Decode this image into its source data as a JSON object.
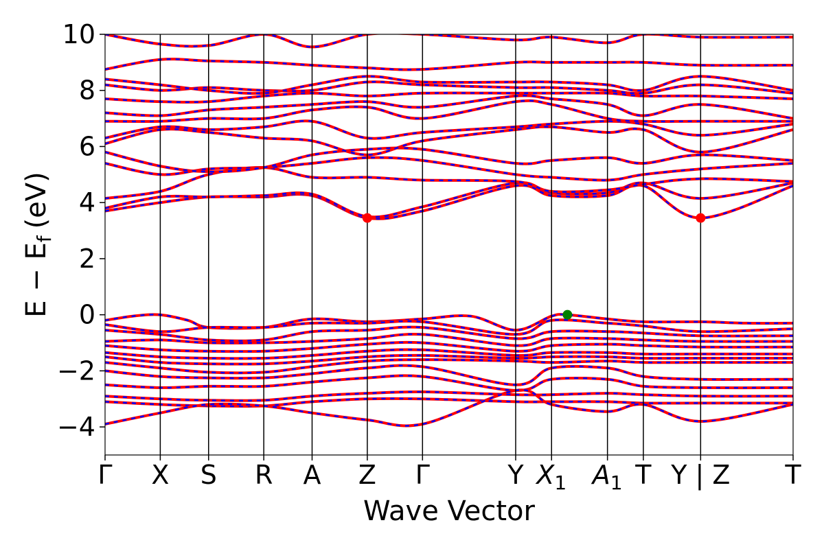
{
  "chart_data": {
    "type": "line",
    "title": "",
    "xlabel": "Wave Vector",
    "ylabel": "E − E",
    "ylabel_subscript": "f",
    "ylabel_unit": "(eV)",
    "ylim": [
      -5,
      10
    ],
    "yticks": [
      -4,
      -2,
      0,
      2,
      4,
      6,
      8,
      10
    ],
    "ytick_labels": [
      "−4",
      "−2",
      "0",
      "2",
      "4",
      "6",
      "8",
      "10"
    ],
    "kpath_positions": [
      0.0,
      0.8,
      1.5,
      2.3,
      3.0,
      3.8,
      4.6,
      5.95,
      6.47,
      7.28,
      7.8,
      8.63,
      9.97
    ],
    "kpath_labels": [
      {
        "main": "Γ",
        "sub": ""
      },
      {
        "main": "X",
        "sub": ""
      },
      {
        "main": "S",
        "sub": ""
      },
      {
        "main": "R",
        "sub": ""
      },
      {
        "main": "A",
        "sub": ""
      },
      {
        "main": "Z",
        "sub": ""
      },
      {
        "main": "Γ",
        "sub": ""
      },
      {
        "main": "Y",
        "sub": ""
      },
      {
        "main": "X",
        "sub": "1"
      },
      {
        "main": "A",
        "sub": "1"
      },
      {
        "main": "T",
        "sub": ""
      },
      {
        "main": "Y | Z",
        "sub": ""
      },
      {
        "main": "T",
        "sub": ""
      }
    ],
    "series": [
      {
        "color": "#ff0000",
        "style": "solid"
      },
      {
        "color": "#0000ff",
        "style": "dashed"
      }
    ],
    "valence_bands": [
      {
        "x": [
          0.0,
          0.4,
          0.8,
          1.2,
          1.5,
          2.3,
          3.0,
          3.8,
          4.6,
          5.3,
          5.95,
          6.47,
          6.7,
          7.28,
          7.8,
          8.63,
          9.3,
          9.97
        ],
        "y": [
          -0.2,
          -0.05,
          0.0,
          -0.2,
          -0.45,
          -0.45,
          -0.15,
          -0.25,
          -0.15,
          -0.05,
          -0.55,
          -0.05,
          0.0,
          -0.15,
          -0.25,
          -0.25,
          -0.3,
          -0.3
        ]
      },
      {
        "x": [
          0.0,
          0.8,
          1.5,
          2.3,
          3.0,
          3.8,
          4.6,
          5.95,
          6.47,
          7.28,
          7.8,
          8.63,
          9.97
        ],
        "y": [
          -0.35,
          -0.6,
          -0.45,
          -0.45,
          -0.3,
          -0.3,
          -0.25,
          -0.7,
          -0.2,
          -0.3,
          -0.4,
          -0.6,
          -0.5
        ]
      },
      {
        "x": [
          0.0,
          0.8,
          1.5,
          2.3,
          3.0,
          3.8,
          4.6,
          5.95,
          6.47,
          7.28,
          7.8,
          8.63,
          9.97
        ],
        "y": [
          -0.55,
          -0.7,
          -0.9,
          -0.9,
          -0.6,
          -0.55,
          -0.45,
          -0.85,
          -0.6,
          -0.6,
          -0.65,
          -0.75,
          -0.75
        ]
      },
      {
        "x": [
          0.0,
          0.8,
          1.5,
          2.3,
          3.0,
          3.8,
          4.6,
          5.95,
          6.47,
          7.28,
          7.8,
          8.63,
          9.97
        ],
        "y": [
          -0.95,
          -0.9,
          -1.0,
          -1.0,
          -0.95,
          -0.85,
          -0.7,
          -1.1,
          -0.85,
          -0.85,
          -0.9,
          -0.95,
          -0.95
        ]
      },
      {
        "x": [
          0.0,
          0.8,
          1.5,
          2.3,
          3.0,
          3.8,
          4.6,
          5.95,
          6.47,
          7.28,
          7.8,
          8.63,
          9.97
        ],
        "y": [
          -1.1,
          -1.25,
          -1.3,
          -1.3,
          -1.2,
          -1.05,
          -1.0,
          -1.3,
          -1.1,
          -1.05,
          -1.1,
          -1.15,
          -1.15
        ]
      },
      {
        "x": [
          0.0,
          0.8,
          1.5,
          2.3,
          3.0,
          3.8,
          4.6,
          5.95,
          6.47,
          7.28,
          7.8,
          8.63,
          9.97
        ],
        "y": [
          -1.35,
          -1.5,
          -1.55,
          -1.55,
          -1.45,
          -1.3,
          -1.25,
          -1.45,
          -1.35,
          -1.35,
          -1.4,
          -1.4,
          -1.4
        ]
      },
      {
        "x": [
          0.0,
          0.8,
          1.5,
          2.3,
          3.0,
          3.8,
          4.6,
          5.95,
          6.47,
          7.28,
          7.8,
          8.63,
          9.97
        ],
        "y": [
          -1.5,
          -1.7,
          -1.75,
          -1.75,
          -1.65,
          -1.5,
          -1.45,
          -1.55,
          -1.5,
          -1.5,
          -1.55,
          -1.55,
          -1.55
        ]
      },
      {
        "x": [
          0.0,
          0.8,
          1.5,
          2.3,
          3.0,
          3.8,
          4.6,
          5.95,
          6.47,
          7.28,
          7.8,
          8.63,
          9.97
        ],
        "y": [
          -1.7,
          -1.9,
          -2.05,
          -2.05,
          -1.85,
          -1.65,
          -1.6,
          -1.65,
          -1.7,
          -1.65,
          -1.7,
          -1.7,
          -1.7
        ]
      },
      {
        "x": [
          0.0,
          0.8,
          1.5,
          2.3,
          3.0,
          3.8,
          4.6,
          5.95,
          6.47,
          7.28,
          7.8,
          8.63,
          9.97
        ],
        "y": [
          -2.0,
          -2.2,
          -2.25,
          -2.25,
          -2.1,
          -1.9,
          -1.85,
          -2.5,
          -1.9,
          -1.9,
          -2.2,
          -2.3,
          -2.3
        ]
      },
      {
        "x": [
          0.0,
          0.8,
          1.5,
          2.3,
          3.0,
          3.8,
          4.6,
          5.95,
          6.47,
          7.28,
          7.8,
          8.63,
          9.97
        ],
        "y": [
          -2.5,
          -2.6,
          -2.55,
          -2.55,
          -2.4,
          -2.25,
          -2.2,
          -2.7,
          -2.3,
          -2.3,
          -2.55,
          -2.6,
          -2.6
        ]
      },
      {
        "x": [
          0.0,
          0.8,
          1.5,
          2.3,
          3.0,
          3.8,
          4.6,
          5.95,
          6.47,
          7.28,
          7.8,
          8.63,
          9.97
        ],
        "y": [
          -2.9,
          -3.0,
          -3.05,
          -3.05,
          -2.9,
          -2.8,
          -2.75,
          -2.85,
          -2.85,
          -2.8,
          -2.85,
          -2.9,
          -2.9
        ]
      },
      {
        "x": [
          0.0,
          0.8,
          1.5,
          2.3,
          3.0,
          3.8,
          4.6,
          5.95,
          6.47,
          7.28,
          7.8,
          8.63,
          9.97
        ],
        "y": [
          -3.1,
          -3.2,
          -3.25,
          -3.25,
          -3.1,
          -3.0,
          -3.0,
          -3.1,
          -3.1,
          -3.1,
          -3.15,
          -3.15,
          -3.15
        ]
      },
      {
        "x": [
          0.0,
          0.8,
          1.5,
          2.3,
          3.0,
          3.8,
          4.6,
          5.95,
          6.47,
          7.28,
          7.8,
          8.63,
          9.97
        ],
        "y": [
          -3.9,
          -3.5,
          -3.2,
          -3.25,
          -3.5,
          -3.75,
          -3.9,
          -2.7,
          -3.2,
          -3.45,
          -3.2,
          -3.8,
          -3.2
        ]
      }
    ],
    "conduction_bands": [
      {
        "x": [
          0.0,
          0.8,
          1.5,
          2.3,
          3.0,
          3.8,
          4.6,
          5.95,
          6.47,
          7.28,
          7.8,
          8.63,
          9.97
        ],
        "y": [
          3.7,
          4.0,
          4.2,
          4.2,
          4.25,
          3.45,
          3.7,
          4.6,
          4.25,
          4.25,
          4.6,
          3.45,
          4.6
        ]
      },
      {
        "x": [
          0.0,
          0.8,
          1.5,
          2.3,
          3.0,
          3.8,
          4.6,
          5.95,
          6.47,
          7.28,
          7.8,
          8.63,
          9.97
        ],
        "y": [
          3.8,
          4.2,
          4.2,
          4.25,
          4.3,
          3.5,
          3.85,
          4.7,
          4.35,
          4.35,
          4.7,
          4.15,
          4.7
        ]
      },
      {
        "x": [
          0.0,
          0.8,
          1.5,
          2.3,
          3.0,
          3.8,
          4.6,
          5.95,
          6.47,
          7.28,
          7.8,
          8.63,
          9.97
        ],
        "y": [
          4.15,
          4.4,
          5.0,
          5.25,
          4.9,
          4.9,
          4.8,
          4.75,
          4.4,
          4.45,
          4.65,
          4.85,
          4.75
        ]
      },
      {
        "x": [
          0.0,
          0.8,
          1.5,
          2.3,
          3.0,
          3.8,
          4.6,
          5.95,
          6.47,
          7.28,
          7.8,
          8.63,
          9.97
        ],
        "y": [
          5.4,
          5.0,
          5.2,
          5.25,
          5.4,
          5.6,
          5.5,
          5.0,
          4.9,
          4.8,
          5.0,
          5.2,
          5.4
        ]
      },
      {
        "x": [
          0.0,
          0.8,
          1.5,
          2.3,
          3.0,
          3.8,
          4.6,
          5.95,
          6.47,
          7.28,
          7.8,
          8.63,
          9.97
        ],
        "y": [
          5.8,
          5.3,
          5.1,
          5.25,
          5.7,
          5.9,
          5.9,
          5.4,
          5.5,
          5.6,
          5.4,
          5.7,
          5.5
        ]
      },
      {
        "x": [
          0.0,
          0.8,
          1.5,
          2.3,
          3.0,
          3.8,
          4.6,
          5.95,
          6.47,
          7.28,
          7.8,
          8.63,
          9.97
        ],
        "y": [
          6.1,
          6.6,
          6.5,
          6.3,
          6.2,
          5.7,
          6.2,
          6.6,
          6.7,
          6.5,
          6.6,
          5.8,
          6.6
        ]
      },
      {
        "x": [
          0.0,
          0.8,
          1.5,
          2.3,
          3.0,
          3.8,
          4.6,
          5.95,
          6.47,
          7.28,
          7.8,
          8.63,
          9.97
        ],
        "y": [
          6.3,
          6.7,
          6.6,
          6.7,
          6.9,
          6.3,
          6.5,
          6.7,
          6.8,
          6.9,
          6.8,
          6.4,
          6.8
        ]
      },
      {
        "x": [
          0.0,
          0.8,
          1.5,
          2.3,
          3.0,
          3.8,
          4.6,
          5.95,
          6.47,
          7.28,
          7.8,
          8.63,
          9.97
        ],
        "y": [
          6.9,
          6.9,
          7.0,
          7.0,
          7.3,
          7.4,
          7.0,
          7.6,
          7.5,
          7.0,
          6.9,
          6.9,
          6.9
        ]
      },
      {
        "x": [
          0.0,
          0.8,
          1.5,
          2.3,
          3.0,
          3.8,
          4.6,
          5.95,
          6.47,
          7.28,
          7.8,
          8.63,
          9.97
        ],
        "y": [
          7.2,
          7.1,
          7.3,
          7.4,
          7.5,
          7.6,
          7.4,
          7.8,
          7.7,
          7.5,
          7.1,
          7.5,
          7.0
        ]
      },
      {
        "x": [
          0.0,
          0.8,
          1.5,
          2.3,
          3.0,
          3.8,
          4.6,
          5.95,
          6.47,
          7.28,
          7.8,
          8.63,
          9.97
        ],
        "y": [
          7.7,
          7.6,
          7.6,
          7.8,
          7.9,
          7.8,
          7.9,
          7.9,
          7.9,
          7.9,
          7.8,
          7.8,
          7.7
        ]
      },
      {
        "x": [
          0.0,
          0.8,
          1.5,
          2.3,
          3.0,
          3.8,
          4.6,
          5.95,
          6.47,
          7.28,
          7.8,
          8.63,
          9.97
        ],
        "y": [
          8.2,
          8.0,
          8.1,
          8.0,
          8.0,
          8.3,
          8.2,
          8.1,
          8.1,
          8.0,
          7.9,
          8.2,
          7.9
        ]
      },
      {
        "x": [
          0.0,
          0.8,
          1.5,
          2.3,
          3.0,
          3.8,
          4.6,
          5.95,
          6.47,
          7.28,
          7.8,
          8.63,
          9.97
        ],
        "y": [
          8.4,
          8.2,
          8.0,
          7.9,
          8.2,
          8.5,
          8.3,
          8.3,
          8.3,
          8.2,
          8.0,
          8.5,
          8.0
        ]
      },
      {
        "x": [
          0.0,
          0.8,
          1.5,
          2.3,
          3.0,
          3.8,
          4.6,
          5.95,
          6.47,
          7.28,
          7.8,
          8.63,
          9.97
        ],
        "y": [
          8.75,
          9.1,
          9.05,
          9.0,
          8.9,
          8.8,
          8.75,
          9.0,
          9.0,
          9.0,
          9.0,
          8.9,
          8.9
        ]
      },
      {
        "x": [
          0.0,
          0.8,
          1.5,
          2.3,
          3.0,
          3.8,
          4.6,
          5.95,
          6.47,
          7.28,
          7.8,
          8.63,
          9.97
        ],
        "y": [
          10.0,
          9.65,
          9.6,
          10.0,
          9.55,
          10.0,
          10.0,
          9.8,
          9.9,
          9.7,
          10.0,
          9.9,
          9.9
        ]
      }
    ],
    "markers": [
      {
        "x": 3.8,
        "y": 3.45,
        "color": "#ff0000"
      },
      {
        "x": 8.63,
        "y": 3.45,
        "color": "#ff0000"
      },
      {
        "x": 6.7,
        "y": 0.0,
        "color": "#008000"
      }
    ]
  }
}
